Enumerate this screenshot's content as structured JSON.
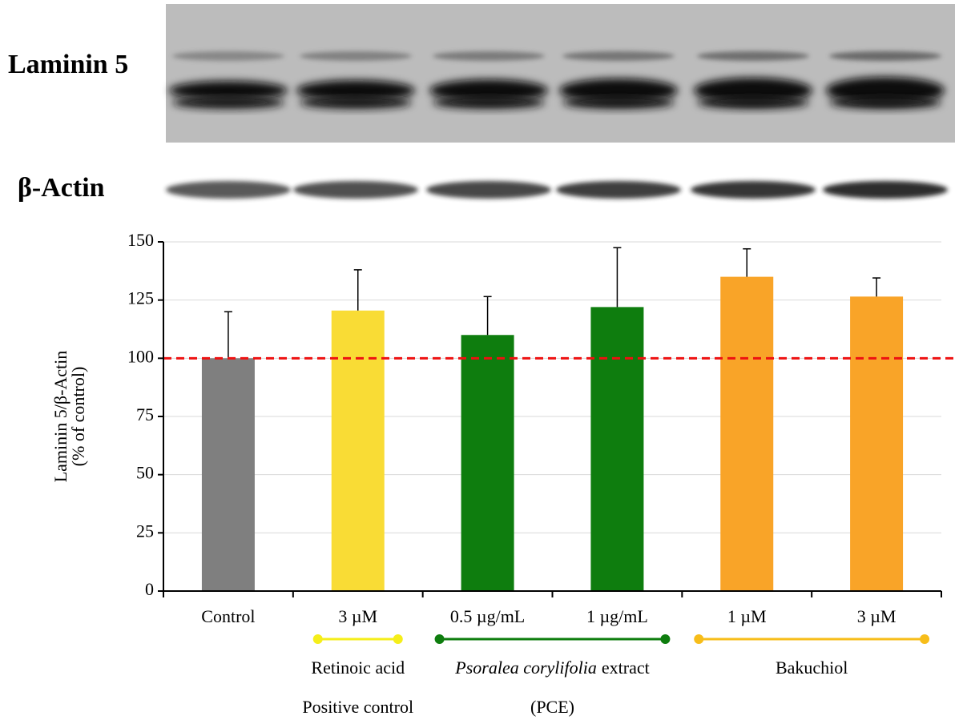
{
  "blots": [
    {
      "label": "Laminin 5"
    },
    {
      "label": "β-Actin"
    }
  ],
  "chart_data": {
    "type": "bar",
    "y_label": [
      "Laminin 5/β-Actin",
      "(% of control)"
    ],
    "categories": [
      "Control",
      "3 µM",
      "0.5 µg/mL",
      "1 µg/mL",
      "1 µM",
      "3 µM"
    ],
    "values": [
      100,
      120.5,
      110,
      122,
      135,
      126.5
    ],
    "errors": [
      20,
      17.5,
      16.5,
      25.5,
      12,
      8
    ],
    "colors": [
      "#7f7f7f",
      "#f9dc35",
      "#0e7d0e",
      "#0e7d0e",
      "#f9a428",
      "#f9a428"
    ],
    "ylim": [
      0,
      150
    ],
    "yticks": [
      0,
      25,
      50,
      75,
      100,
      125,
      150
    ],
    "grid": true,
    "reference_line": {
      "value": 100,
      "color": "#ee1111"
    },
    "groups": [
      {
        "span": [
          1,
          1
        ],
        "color": "#f5ee1a",
        "label": [
          {
            "text": "Retinoic acid",
            "italic": false
          }
        ],
        "sublabel": "Positive control"
      },
      {
        "span": [
          2,
          3
        ],
        "color": "#0e7d0e",
        "label": [
          {
            "text": "Psoralea corylifolia",
            "italic": true
          },
          {
            "text": "extract",
            "italic": false
          }
        ],
        "sublabel": "(PCE)"
      },
      {
        "span": [
          4,
          5
        ],
        "color": "#f7bd1a",
        "label": [
          {
            "text": "Bakuchiol",
            "italic": false
          }
        ]
      }
    ]
  }
}
